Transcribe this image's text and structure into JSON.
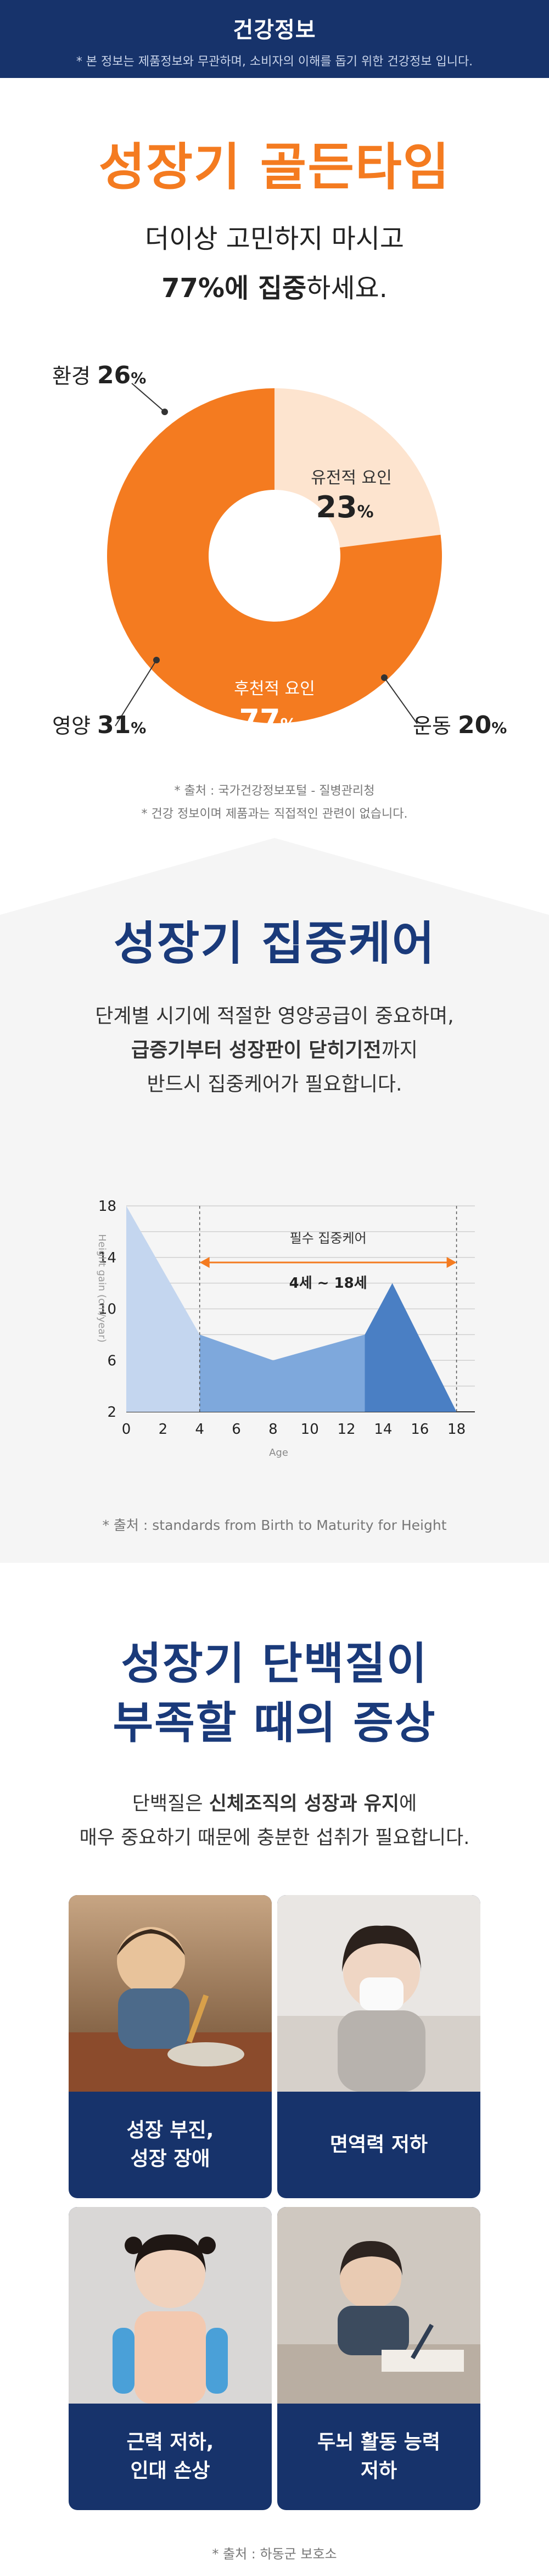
{
  "header": {
    "title": "건강정보",
    "disclaimer": "* 본 정보는 제품정보와 무관하며, 소비자의 이해를 돕기 위한 건강정보 입니다."
  },
  "section1": {
    "title": "성장기 골든타임",
    "subtitle1": "더이상 고민하지 마시고",
    "subtitle2_bold": "77%에 집중",
    "subtitle2_rest": "하세요.",
    "source1": "* 출처 : 국가건강정보포털 - 질병관리청",
    "source2": "* 건강 정보이며 제품과는 직접적인 관련이 없습니다."
  },
  "chart_data": [
    {
      "type": "pie",
      "donut": true,
      "slices": [
        {
          "label": "유전적 요인",
          "value": 23,
          "color": "#fde4cf"
        },
        {
          "label": "후천적 요인",
          "value": 77,
          "color": "#f47b20"
        }
      ],
      "breakdown": [
        {
          "label": "환경",
          "value": 26
        },
        {
          "label": "영양",
          "value": 31
        },
        {
          "label": "운동",
          "value": 20
        }
      ],
      "unit": "%"
    },
    {
      "type": "area",
      "ylabel": "Height gain (cm/year)",
      "xlabel": "Age",
      "x_ticks": [
        0,
        2,
        4,
        6,
        8,
        10,
        12,
        14,
        16,
        18
      ],
      "y_ticks": [
        2,
        6,
        10,
        14,
        18
      ],
      "xlim": [
        0,
        19
      ],
      "ylim": [
        2,
        18
      ],
      "series": [
        {
          "values": [
            [
              0,
              18
            ],
            [
              4,
              8
            ],
            [
              8,
              6
            ],
            [
              13,
              8
            ],
            [
              14.5,
              12
            ],
            [
              18,
              2
            ]
          ]
        }
      ],
      "segments": [
        {
          "from": 0,
          "to": 4,
          "color": "#c4d6ef"
        },
        {
          "from": 4,
          "to": 13,
          "color": "#7ea8dc"
        },
        {
          "from": 13,
          "to": 18,
          "color": "#4a7fc4"
        }
      ],
      "annotation": {
        "title": "필수 집중케어",
        "range_label": "4세 ~ 18세",
        "from": 4,
        "to": 18,
        "color": "#f47b20"
      }
    }
  ],
  "section2": {
    "title": "성장기 집중케어",
    "line1": "단계별 시기에 적절한 영양공급이 중요하며,",
    "line2_bold": "급증기부터 성장판이 닫히기전",
    "line2_rest": "까지",
    "line3": "반드시 집중케어가 필요합니다.",
    "source": "* 출처 : standards from Birth to Maturity for Height"
  },
  "section3": {
    "title_line1": "성장기 단백질이",
    "title_line2": "부족할 때의 증상",
    "line1_a": "단백질은 ",
    "line1_bold": "신체조직의 성장과 유지",
    "line1_b": "에",
    "line2": "매우 중요하기 때문에 충분한 섭취가 필요합니다.",
    "cards": [
      {
        "label": "성장 부진,\n성장 장애"
      },
      {
        "label": "면역력 저하"
      },
      {
        "label": "근력 저하,\n인대 손상"
      },
      {
        "label": "두뇌 활동 능력\n저하"
      }
    ],
    "source": "* 출처 : 하동군 보호소"
  }
}
